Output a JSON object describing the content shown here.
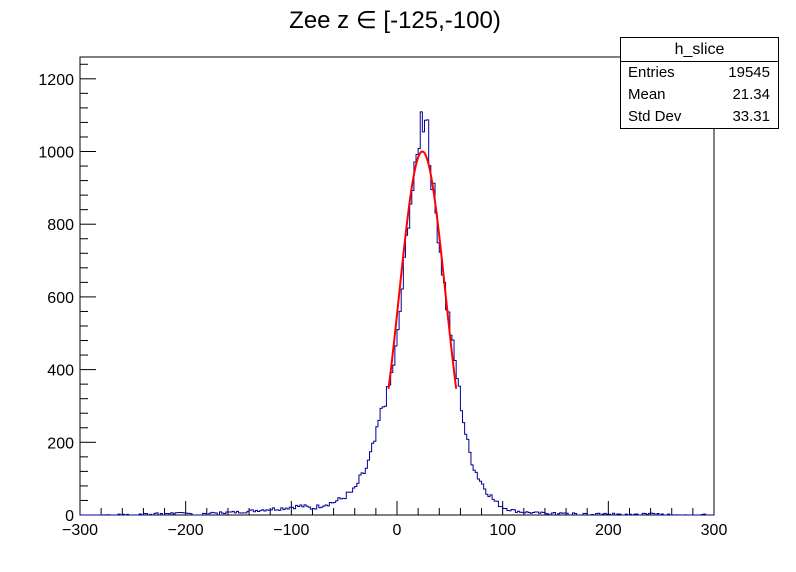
{
  "chart_data": {
    "type": "histogram",
    "title": "Zee z ∈ [-125,-100)",
    "xlim": [
      -300,
      300
    ],
    "ylim": [
      0,
      1260
    ],
    "x_ticks": [
      -300,
      -200,
      -100,
      0,
      100,
      200,
      300
    ],
    "y_ticks": [
      0,
      200,
      400,
      600,
      800,
      1000,
      1200
    ],
    "grid": false,
    "bin_width": 2,
    "histogram": {
      "color": "#000099",
      "points": [
        [
          -280,
          0
        ],
        [
          -240,
          3
        ],
        [
          -210,
          5
        ],
        [
          -190,
          3
        ],
        [
          -170,
          6
        ],
        [
          -150,
          8
        ],
        [
          -140,
          10
        ],
        [
          -130,
          14
        ],
        [
          -120,
          16
        ],
        [
          -110,
          18
        ],
        [
          -100,
          22
        ],
        [
          -90,
          25
        ],
        [
          -80,
          18
        ],
        [
          -70,
          28
        ],
        [
          -60,
          35
        ],
        [
          -52,
          45
        ],
        [
          -46,
          58
        ],
        [
          -40,
          68
        ],
        [
          -36,
          95
        ],
        [
          -32,
          110
        ],
        [
          -28,
          135
        ],
        [
          -24,
          175
        ],
        [
          -20,
          210
        ],
        [
          -16,
          270
        ],
        [
          -12,
          310
        ],
        [
          -8,
          340
        ],
        [
          -4,
          400
        ],
        [
          0,
          470
        ],
        [
          2,
          520
        ],
        [
          4,
          600
        ],
        [
          6,
          650
        ],
        [
          8,
          720
        ],
        [
          10,
          790
        ],
        [
          12,
          850
        ],
        [
          14,
          880
        ],
        [
          16,
          910
        ],
        [
          18,
          960
        ],
        [
          20,
          1000
        ],
        [
          22,
          1070
        ],
        [
          24,
          1120
        ],
        [
          26,
          1040
        ],
        [
          28,
          1180
        ],
        [
          30,
          990
        ],
        [
          32,
          960
        ],
        [
          34,
          900
        ],
        [
          36,
          860
        ],
        [
          38,
          800
        ],
        [
          40,
          760
        ],
        [
          42,
          700
        ],
        [
          44,
          660
        ],
        [
          46,
          600
        ],
        [
          48,
          560
        ],
        [
          50,
          530
        ],
        [
          52,
          480
        ],
        [
          54,
          440
        ],
        [
          56,
          400
        ],
        [
          60,
          320
        ],
        [
          64,
          240
        ],
        [
          68,
          180
        ],
        [
          72,
          140
        ],
        [
          76,
          110
        ],
        [
          80,
          90
        ],
        [
          84,
          70
        ],
        [
          88,
          55
        ],
        [
          92,
          40
        ],
        [
          96,
          30
        ],
        [
          100,
          22
        ],
        [
          110,
          12
        ],
        [
          120,
          8
        ],
        [
          130,
          6
        ],
        [
          140,
          5
        ],
        [
          160,
          4
        ],
        [
          180,
          3
        ],
        [
          200,
          3
        ],
        [
          220,
          2
        ],
        [
          240,
          3
        ],
        [
          260,
          2
        ],
        [
          280,
          1
        ],
        [
          298,
          2
        ]
      ]
    },
    "fit": {
      "type": "gaussian",
      "color": "#ff0000",
      "constant": 1000,
      "mean": 24,
      "sigma": 22,
      "range": [
        -8,
        56
      ]
    },
    "stats": {
      "name": "h_slice",
      "rows": [
        {
          "label": "Entries",
          "value": "19545"
        },
        {
          "label": "Mean",
          "value": "21.34"
        },
        {
          "label": "Std Dev",
          "value": "33.31"
        }
      ]
    }
  }
}
